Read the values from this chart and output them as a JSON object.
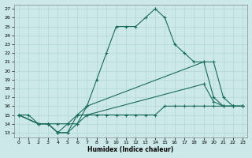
{
  "xlabel": "Humidex (Indice chaleur)",
  "bg_color": "#cce8e8",
  "grid_color": "#b0d8d8",
  "line_color": "#1a6b5a",
  "xlim": [
    -0.5,
    23.5
  ],
  "ylim": [
    12.5,
    27.5
  ],
  "xticks": [
    0,
    1,
    2,
    3,
    4,
    5,
    6,
    7,
    8,
    9,
    10,
    11,
    12,
    13,
    14,
    15,
    16,
    17,
    18,
    19,
    20,
    21,
    22,
    23
  ],
  "yticks": [
    13,
    14,
    15,
    16,
    17,
    18,
    19,
    20,
    21,
    22,
    23,
    24,
    25,
    26,
    27
  ],
  "lines": [
    {
      "x": [
        0,
        1,
        2,
        3,
        4,
        5,
        6,
        7,
        8,
        9,
        10,
        11,
        12,
        13,
        14,
        15,
        16,
        17,
        18,
        19,
        20,
        21,
        22,
        23
      ],
      "y": [
        15,
        15,
        14,
        14,
        13,
        13,
        14,
        16,
        19,
        22,
        25,
        25,
        25,
        26,
        27,
        26,
        23,
        22,
        21,
        21,
        21,
        17,
        16,
        16
      ]
    },
    {
      "x": [
        0,
        2,
        3,
        4,
        5,
        6,
        7,
        19,
        20,
        21,
        22,
        23
      ],
      "y": [
        15,
        14,
        14,
        13,
        13,
        15,
        16,
        21,
        17,
        16,
        16,
        16
      ]
    },
    {
      "x": [
        0,
        2,
        3,
        4,
        5,
        6,
        7,
        19,
        20,
        21,
        22,
        23
      ],
      "y": [
        15,
        14,
        14,
        13,
        14,
        15,
        15,
        18.5,
        16.5,
        16,
        16,
        16
      ]
    },
    {
      "x": [
        0,
        2,
        3,
        4,
        5,
        6,
        7,
        8,
        9,
        10,
        11,
        12,
        13,
        14,
        15,
        16,
        17,
        18,
        19,
        20,
        21,
        22,
        23
      ],
      "y": [
        15,
        14,
        14,
        14,
        14,
        14,
        15,
        15,
        15,
        15,
        15,
        15,
        15,
        15,
        16,
        16,
        16,
        16,
        16,
        16,
        16,
        16,
        16
      ]
    }
  ]
}
